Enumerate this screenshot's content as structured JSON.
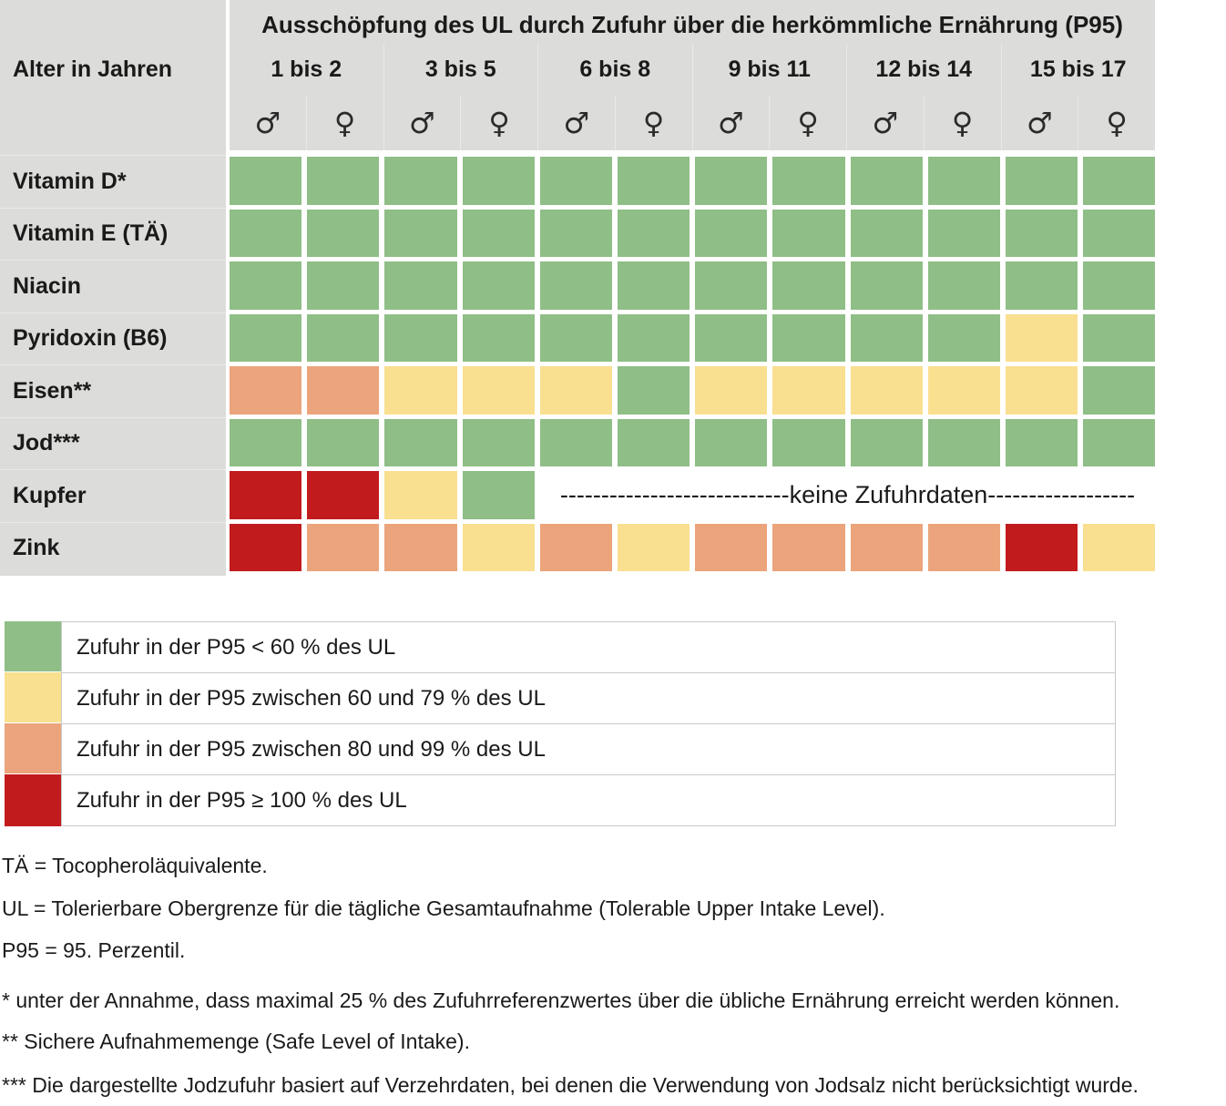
{
  "chart_data": {
    "type": "heatmap",
    "title": "Ausschöpfung des UL durch Zufuhr über die herkömmliche Ernährung (P95)",
    "row_header_label": "Alter in Jahren",
    "age_groups": [
      "1 bis 2",
      "3 bis 5",
      "6 bis 8",
      "9 bis 11",
      "12 bis 14",
      "15 bis 17"
    ],
    "sex_symbols": [
      "♂",
      "♀"
    ],
    "x_categories": [
      "1 bis 2 ♂",
      "1 bis 2 ♀",
      "3 bis 5 ♂",
      "3 bis 5 ♀",
      "6 bis 8 ♂",
      "6 bis 8 ♀",
      "9 bis 11 ♂",
      "9 bis 11 ♀",
      "12 bis 14 ♂",
      "12 bis 14 ♀",
      "15 bis 17 ♂",
      "15 bis 17 ♀"
    ],
    "rows": [
      {
        "label": "Vitamin D*",
        "cells": [
          "green",
          "green",
          "green",
          "green",
          "green",
          "green",
          "green",
          "green",
          "green",
          "green",
          "green",
          "green"
        ]
      },
      {
        "label": "Vitamin E (TÄ)",
        "cells": [
          "green",
          "green",
          "green",
          "green",
          "green",
          "green",
          "green",
          "green",
          "green",
          "green",
          "green",
          "green"
        ]
      },
      {
        "label": "Niacin",
        "cells": [
          "green",
          "green",
          "green",
          "green",
          "green",
          "green",
          "green",
          "green",
          "green",
          "green",
          "green",
          "green"
        ]
      },
      {
        "label": "Pyridoxin (B6)",
        "cells": [
          "green",
          "green",
          "green",
          "green",
          "green",
          "green",
          "green",
          "green",
          "green",
          "green",
          "yellow",
          "green"
        ]
      },
      {
        "label": "Eisen**",
        "cells": [
          "orange",
          "orange",
          "yellow",
          "yellow",
          "yellow",
          "green",
          "yellow",
          "yellow",
          "yellow",
          "yellow",
          "yellow",
          "green"
        ]
      },
      {
        "label": "Jod***",
        "cells": [
          "green",
          "green",
          "green",
          "green",
          "green",
          "green",
          "green",
          "green",
          "green",
          "green",
          "green",
          "green"
        ]
      },
      {
        "label": "Kupfer",
        "cells": [
          "red",
          "red",
          "yellow",
          "green",
          null,
          null,
          null,
          null,
          null,
          null,
          null,
          null
        ]
      },
      {
        "label": "Zink",
        "cells": [
          "red",
          "orange",
          "orange",
          "yellow",
          "orange",
          "yellow",
          "orange",
          "orange",
          "orange",
          "orange",
          "red",
          "yellow"
        ]
      }
    ],
    "no_data_text": "----------------------------keine Zufuhrdaten------------------",
    "category_colors": {
      "green": "#8fbe87",
      "yellow": "#f9df90",
      "orange": "#eba47c",
      "red": "#c21b1e"
    },
    "legend": [
      {
        "key": "green",
        "color": "#8fbe87",
        "label": "Zufuhr in der P95 < 60 % des UL"
      },
      {
        "key": "yellow",
        "color": "#f9df90",
        "label": "Zufuhr in der P95 zwischen 60 und 79 % des UL"
      },
      {
        "key": "orange",
        "color": "#eba47c",
        "label": "Zufuhr in der P95 zwischen 80 und 99 % des UL"
      },
      {
        "key": "red",
        "color": "#c21b1e",
        "label": "Zufuhr in der P95 ≥ 100 % des UL"
      }
    ],
    "legend_position": "bottom-left"
  },
  "footnotes": [
    "TÄ = Tocopheroläquivalente.",
    "UL = Tolerierbare Obergrenze für die tägliche Gesamtaufnahme (Tolerable Upper Intake Level).",
    "P95 = 95. Perzentil.",
    "*  unter der Annahme, dass maximal 25 % des Zufuhrreferenzwertes über die übliche Ernährung erreicht werden können.",
    "** Sichere Aufnahmemenge (Safe Level of Intake).",
    "*** Die dargestellte Jodzufuhr basiert auf Verzehrdaten, bei denen die Verwendung von Jodsalz nicht berücksichtigt wurde."
  ],
  "style_colors": {
    "header_bg": "#dcdcda",
    "separator": "#e9e9e7",
    "legend_border": "#c9c9c9",
    "text": "#1a1a1a"
  }
}
